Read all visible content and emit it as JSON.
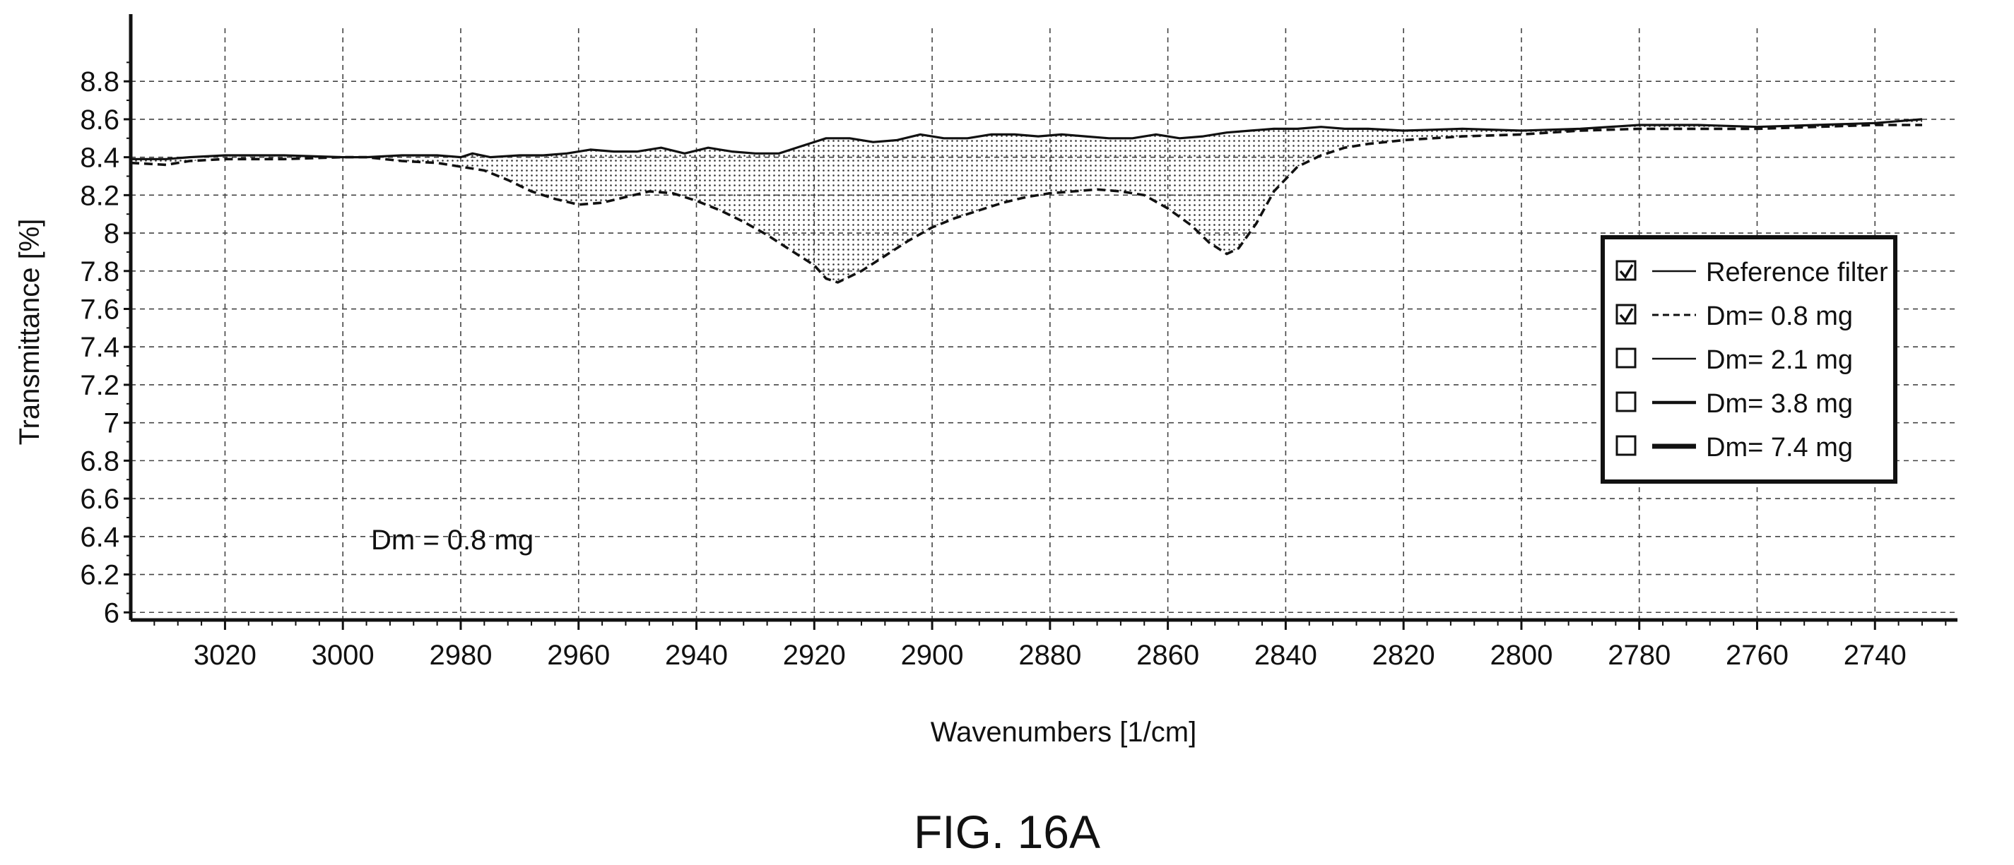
{
  "caption": "FIG. 16A",
  "chart_data": {
    "type": "line",
    "title": "",
    "xlabel": "Wavenumbers [1/cm]",
    "ylabel": "Transmittance [%]",
    "xlim": [
      3036,
      2726
    ],
    "ylim": [
      5.96,
      9.08
    ],
    "x_reversed": true,
    "grid": true,
    "x_ticks": [
      3020,
      3000,
      2980,
      2960,
      2940,
      2920,
      2900,
      2880,
      2860,
      2840,
      2820,
      2800,
      2780,
      2760,
      2740
    ],
    "y_ticks": [
      {
        "value": 6,
        "label": "6"
      },
      {
        "value": 6.2,
        "label": "6.2"
      },
      {
        "value": 6.4,
        "label": "6.4"
      },
      {
        "value": 6.6,
        "label": "6.6"
      },
      {
        "value": 6.8,
        "label": "6.8"
      },
      {
        "value": 7,
        "label": "7"
      },
      {
        "value": 7.2,
        "label": "7.2"
      },
      {
        "value": 7.4,
        "label": "7.4"
      },
      {
        "value": 7.6,
        "label": "7.6"
      },
      {
        "value": 7.8,
        "label": "7.8"
      },
      {
        "value": 8,
        "label": "8"
      },
      {
        "value": 8.2,
        "label": "8.2"
      },
      {
        "value": 8.4,
        "label": "8.4"
      },
      {
        "value": 8.6,
        "label": "8.6"
      },
      {
        "value": 8.8,
        "label": "8.8"
      }
    ],
    "annotation": "Dm = 0.8 mg",
    "shaded_between_series": true,
    "legend_position": "right-middle",
    "legend": [
      {
        "label": "Reference filter",
        "checked": true,
        "line": "solid-thin"
      },
      {
        "label": "Dm= 0.8 mg",
        "checked": true,
        "line": "dashed"
      },
      {
        "label": "Dm= 2.1 mg",
        "checked": false,
        "line": "solid-thin"
      },
      {
        "label": "Dm= 3.8 mg",
        "checked": false,
        "line": "solid-medium"
      },
      {
        "label": "Dm= 7.4 mg",
        "checked": false,
        "line": "solid-thick"
      }
    ],
    "series": [
      {
        "name": "Reference filter",
        "x": [
          3036,
          3030,
          3026,
          3020,
          3010,
          3000,
          2996,
          2990,
          2984,
          2980,
          2978,
          2975,
          2970,
          2966,
          2962,
          2958,
          2954,
          2950,
          2946,
          2942,
          2938,
          2934,
          2930,
          2926,
          2922,
          2918,
          2914,
          2910,
          2906,
          2902,
          2898,
          2894,
          2890,
          2886,
          2882,
          2878,
          2874,
          2870,
          2866,
          2862,
          2858,
          2854,
          2850,
          2846,
          2842,
          2838,
          2834,
          2830,
          2826,
          2820,
          2810,
          2800,
          2790,
          2780,
          2770,
          2760,
          2750,
          2740,
          2732
        ],
        "y": [
          8.39,
          8.39,
          8.4,
          8.41,
          8.41,
          8.4,
          8.4,
          8.41,
          8.41,
          8.4,
          8.42,
          8.4,
          8.41,
          8.41,
          8.42,
          8.44,
          8.43,
          8.43,
          8.45,
          8.42,
          8.45,
          8.43,
          8.42,
          8.42,
          8.46,
          8.5,
          8.5,
          8.48,
          8.49,
          8.52,
          8.5,
          8.5,
          8.52,
          8.52,
          8.51,
          8.52,
          8.51,
          8.5,
          8.5,
          8.52,
          8.5,
          8.51,
          8.53,
          8.54,
          8.55,
          8.55,
          8.56,
          8.55,
          8.55,
          8.54,
          8.55,
          8.54,
          8.55,
          8.57,
          8.57,
          8.56,
          8.57,
          8.58,
          8.6
        ]
      },
      {
        "name": "Dm= 0.8 mg",
        "x": [
          3036,
          3030,
          3026,
          3020,
          3010,
          3000,
          2996,
          2990,
          2984,
          2980,
          2976,
          2972,
          2968,
          2964,
          2960,
          2956,
          2952,
          2948,
          2944,
          2940,
          2936,
          2932,
          2928,
          2924,
          2920,
          2918,
          2916,
          2912,
          2908,
          2904,
          2900,
          2896,
          2892,
          2888,
          2884,
          2880,
          2876,
          2872,
          2868,
          2864,
          2860,
          2856,
          2853,
          2850,
          2848,
          2845,
          2842,
          2838,
          2834,
          2830,
          2826,
          2820,
          2810,
          2800,
          2790,
          2780,
          2770,
          2760,
          2750,
          2740,
          2732
        ],
        "y": [
          8.37,
          8.36,
          8.38,
          8.39,
          8.39,
          8.4,
          8.4,
          8.38,
          8.37,
          8.35,
          8.33,
          8.28,
          8.22,
          8.18,
          8.15,
          8.16,
          8.19,
          8.22,
          8.21,
          8.17,
          8.12,
          8.06,
          7.99,
          7.91,
          7.83,
          7.76,
          7.74,
          7.8,
          7.88,
          7.96,
          8.03,
          8.08,
          8.12,
          8.16,
          8.19,
          8.21,
          8.22,
          8.23,
          8.22,
          8.2,
          8.13,
          8.04,
          7.95,
          7.89,
          7.92,
          8.05,
          8.22,
          8.35,
          8.41,
          8.45,
          8.47,
          8.49,
          8.51,
          8.52,
          8.54,
          8.55,
          8.55,
          8.55,
          8.56,
          8.57,
          8.57
        ]
      }
    ]
  }
}
